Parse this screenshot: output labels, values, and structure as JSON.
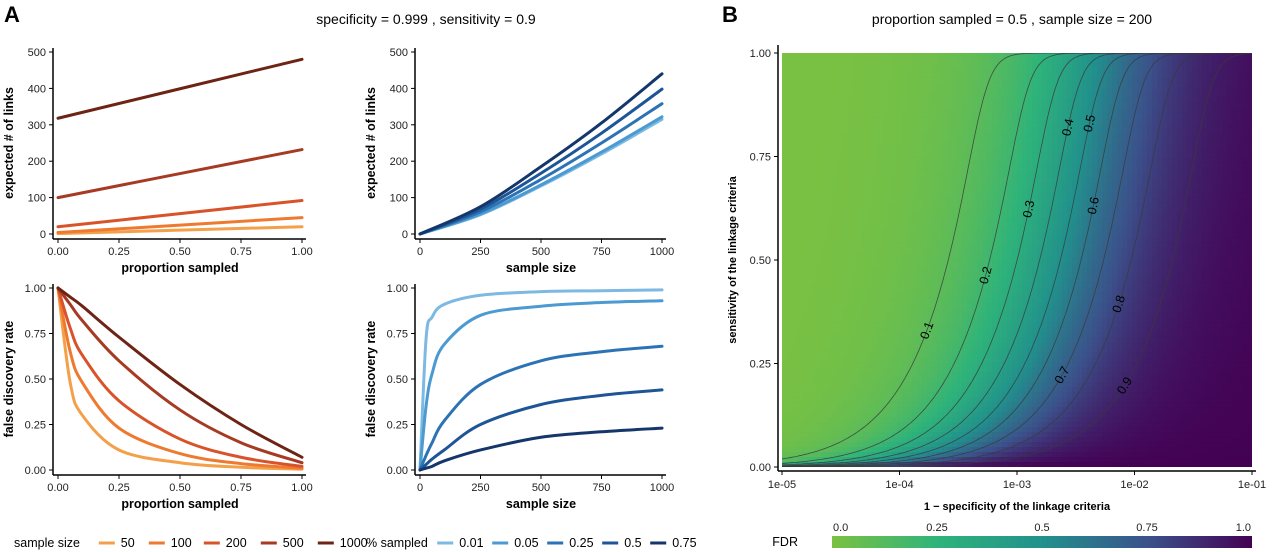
{
  "panels": {
    "A": {
      "letter": "A",
      "header": "specificity =  0.999 , sensitivity =  0.9"
    },
    "B": {
      "letter": "B",
      "header": "proportion sampled =  0.5 , sample size =  200"
    }
  },
  "legends": {
    "sample_size": {
      "title": "sample size",
      "items": [
        "50",
        "100",
        "200",
        "500",
        "1000"
      ],
      "colors": [
        "#f4a04b",
        "#ee7a30",
        "#d9532a",
        "#a63a22",
        "#6e2414"
      ]
    },
    "pct_sampled": {
      "title": "% sampled",
      "items": [
        "0.01",
        "0.05",
        "0.25",
        "0.5",
        "0.75"
      ],
      "colors": [
        "#7db9e2",
        "#4b9ad1",
        "#2b73b4",
        "#1d5597",
        "#14366a"
      ]
    }
  },
  "colors": {
    "orange_series": [
      "#f4a04b",
      "#ee7a30",
      "#d9532a",
      "#a63a22",
      "#6e2414"
    ],
    "blue_series": [
      "#7db9e2",
      "#4b9ad1",
      "#2b73b4",
      "#1d5597",
      "#14366a"
    ]
  },
  "chart_data": [
    {
      "id": "links-vs-proportion",
      "type": "line",
      "xlabel": "proportion sampled",
      "ylabel": "expected # of links",
      "xlim": [
        0,
        1
      ],
      "ylim": [
        0,
        500
      ],
      "xticks": [
        "0.00",
        "0.25",
        "0.50",
        "0.75",
        "1.00"
      ],
      "yticks": [
        "0",
        "100",
        "200",
        "300",
        "400",
        "500"
      ],
      "x": [
        0,
        1
      ],
      "series": [
        {
          "name": "50",
          "values": [
            1,
            20
          ]
        },
        {
          "name": "100",
          "values": [
            4,
            45
          ]
        },
        {
          "name": "200",
          "values": [
            20,
            92
          ]
        },
        {
          "name": "500",
          "values": [
            100,
            232
          ]
        },
        {
          "name": "1000",
          "values": [
            318,
            480
          ]
        }
      ]
    },
    {
      "id": "links-vs-sample-size",
      "type": "line",
      "xlabel": "sample size",
      "ylabel": "expected # of links",
      "xlim": [
        0,
        1000
      ],
      "ylim": [
        0,
        500
      ],
      "xticks": [
        "0",
        "250",
        "500",
        "750",
        "1000"
      ],
      "yticks": [
        "0",
        "100",
        "200",
        "300",
        "400",
        "500"
      ],
      "x": [
        0,
        250,
        500,
        750,
        1000
      ],
      "series": [
        {
          "name": "0.01",
          "values": [
            0,
            53,
            132,
            220,
            315
          ]
        },
        {
          "name": "0.05",
          "values": [
            0,
            55,
            135,
            225,
            322
          ]
        },
        {
          "name": "0.25",
          "values": [
            0,
            61,
            150,
            250,
            358
          ]
        },
        {
          "name": "0.5",
          "values": [
            0,
            68,
            167,
            277,
            398
          ]
        },
        {
          "name": "0.75",
          "values": [
            0,
            75,
            185,
            305,
            440
          ]
        }
      ]
    },
    {
      "id": "fdr-vs-proportion",
      "type": "line",
      "xlabel": "proportion sampled",
      "ylabel": "false discovery rate",
      "xlim": [
        0,
        1
      ],
      "ylim": [
        0,
        1
      ],
      "xticks": [
        "0.00",
        "0.25",
        "0.50",
        "0.75",
        "1.00"
      ],
      "yticks": [
        "0.00",
        "0.25",
        "0.50",
        "0.75",
        "1.00"
      ],
      "x": [
        0,
        0.05,
        0.1,
        0.25,
        0.5,
        0.75,
        1
      ],
      "series": [
        {
          "name": "50",
          "values": [
            1.0,
            0.48,
            0.3,
            0.11,
            0.04,
            0.015,
            0.005
          ]
        },
        {
          "name": "100",
          "values": [
            1.0,
            0.65,
            0.48,
            0.23,
            0.09,
            0.035,
            0.01
          ]
        },
        {
          "name": "200",
          "values": [
            1.0,
            0.78,
            0.63,
            0.38,
            0.17,
            0.07,
            0.02
          ]
        },
        {
          "name": "500",
          "values": [
            1.0,
            0.91,
            0.82,
            0.6,
            0.33,
            0.15,
            0.04
          ]
        },
        {
          "name": "1000",
          "values": [
            1.0,
            0.95,
            0.9,
            0.73,
            0.47,
            0.25,
            0.07
          ]
        }
      ]
    },
    {
      "id": "fdr-vs-sample-size",
      "type": "line",
      "xlabel": "sample size",
      "ylabel": "false discovery rate",
      "xlim": [
        0,
        1000
      ],
      "ylim": [
        0,
        1
      ],
      "xticks": [
        "0",
        "250",
        "500",
        "750",
        "1000"
      ],
      "yticks": [
        "0.00",
        "0.25",
        "0.50",
        "0.75",
        "1.00"
      ],
      "x": [
        0,
        25,
        50,
        100,
        250,
        500,
        750,
        1000
      ],
      "series": [
        {
          "name": "0.01",
          "values": [
            0,
            0.72,
            0.84,
            0.91,
            0.96,
            0.98,
            0.985,
            0.99
          ]
        },
        {
          "name": "0.05",
          "values": [
            0,
            0.35,
            0.53,
            0.69,
            0.85,
            0.9,
            0.92,
            0.93
          ]
        },
        {
          "name": "0.25",
          "values": [
            0,
            0.08,
            0.15,
            0.27,
            0.47,
            0.6,
            0.65,
            0.68
          ]
        },
        {
          "name": "0.5",
          "values": [
            0,
            0.03,
            0.06,
            0.11,
            0.25,
            0.36,
            0.41,
            0.44
          ]
        },
        {
          "name": "0.75",
          "values": [
            0,
            0.01,
            0.02,
            0.05,
            0.11,
            0.18,
            0.21,
            0.23
          ]
        }
      ]
    },
    {
      "id": "fdr-heatmap",
      "type": "heatmap",
      "xlabel": "1 − specificity of the linkage criteria",
      "ylabel": "sensitivity of the linkage criteria",
      "xscale": "log",
      "xlim": [
        "1e-05",
        "1e-01"
      ],
      "ylim": [
        0,
        1
      ],
      "xticks": [
        "1e-05",
        "1e-04",
        "1e-03",
        "1e-02",
        "1e-01"
      ],
      "yticks": [
        "0.00",
        "0.25",
        "0.50",
        "0.75",
        "1.00"
      ],
      "contour_levels": [
        "0.1",
        "0.2",
        "0.3",
        "0.4",
        "0.5",
        "0.6",
        "0.7",
        "0.8",
        "0.9"
      ],
      "colorbar": {
        "title": "FDR",
        "ticks": [
          "0.0",
          "0.25",
          "0.5",
          "0.75",
          "1.0"
        ]
      }
    }
  ]
}
